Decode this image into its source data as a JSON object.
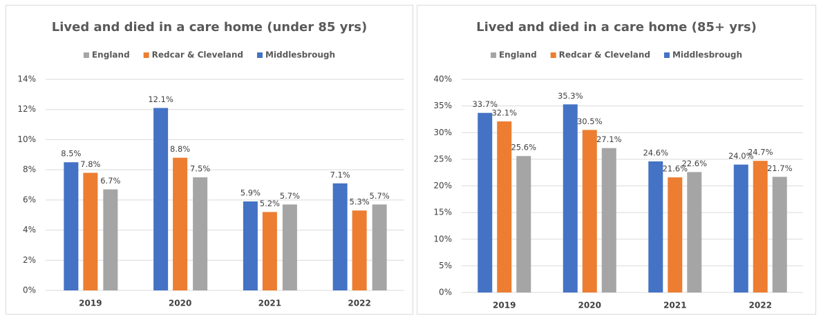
{
  "chart_data": [
    {
      "type": "bar",
      "title": "Lived and died in a care home (under 85 yrs)",
      "categories": [
        "2019",
        "2020",
        "2021",
        "2022"
      ],
      "series": [
        {
          "name": "England",
          "color": "#a5a5a5",
          "values": [
            6.7,
            7.5,
            5.7,
            5.7
          ],
          "value_labels": [
            "6.7%",
            "7.5%",
            "5.7%",
            "5.7%"
          ]
        },
        {
          "name": "Redcar & Cleveland",
          "color": "#ed7d31",
          "values": [
            7.8,
            8.8,
            5.2,
            5.3
          ],
          "value_labels": [
            "7.8%",
            "8.8%",
            "5.2%",
            "5.3%"
          ]
        },
        {
          "name": "Middlesbrough",
          "color": "#4472c4",
          "values": [
            8.5,
            12.1,
            5.9,
            7.1
          ],
          "value_labels": [
            "8.5%",
            "12.1%",
            "5.9%",
            "7.1%"
          ]
        }
      ],
      "ylim": [
        0,
        14
      ],
      "yticks": [
        {
          "value": 0,
          "label": "0%"
        },
        {
          "value": 2,
          "label": "2%"
        },
        {
          "value": 4,
          "label": "4%"
        },
        {
          "value": 6,
          "label": "6%"
        },
        {
          "value": 8,
          "label": "8%"
        },
        {
          "value": 10,
          "label": "10%"
        },
        {
          "value": 12,
          "label": "12%"
        },
        {
          "value": 14,
          "label": "14%"
        }
      ],
      "grid": true,
      "legend": "top"
    },
    {
      "type": "bar",
      "title": "Lived and died in a care home (85+ yrs)",
      "categories": [
        "2019",
        "2020",
        "2021",
        "2022"
      ],
      "series": [
        {
          "name": "England",
          "color": "#a5a5a5",
          "values": [
            25.6,
            27.1,
            22.6,
            21.7
          ],
          "value_labels": [
            "25.6%",
            "27.1%",
            "22.6%",
            "21.7%"
          ]
        },
        {
          "name": "Redcar & Cleveland",
          "color": "#ed7d31",
          "values": [
            32.1,
            30.5,
            21.6,
            24.7
          ],
          "value_labels": [
            "32.1%",
            "30.5%",
            "21.6%",
            "24.7%"
          ]
        },
        {
          "name": "Middlesbrough",
          "color": "#4472c4",
          "values": [
            33.7,
            35.3,
            24.6,
            24.0
          ],
          "value_labels": [
            "33.7%",
            "35.3%",
            "24.6%",
            "24.0%"
          ]
        }
      ],
      "ylim": [
        0,
        40
      ],
      "yticks": [
        {
          "value": 0,
          "label": "0%"
        },
        {
          "value": 5,
          "label": "5%"
        },
        {
          "value": 10,
          "label": "10%"
        },
        {
          "value": 15,
          "label": "15%"
        },
        {
          "value": 20,
          "label": "20%"
        },
        {
          "value": 25,
          "label": "25%"
        },
        {
          "value": 30,
          "label": "30%"
        },
        {
          "value": 35,
          "label": "35%"
        },
        {
          "value": 40,
          "label": "40%"
        }
      ],
      "grid": true,
      "legend": "top"
    }
  ]
}
